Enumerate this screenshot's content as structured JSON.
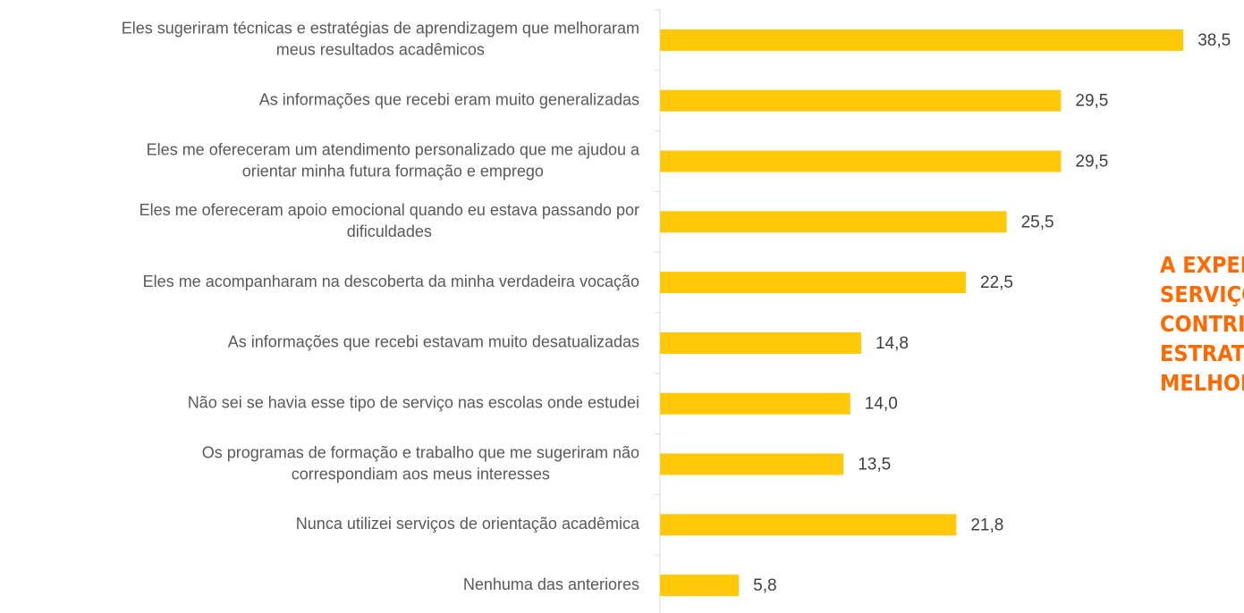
{
  "chart_data": {
    "type": "bar",
    "orientation": "horizontal",
    "categories": [
      [
        "Eles sugeriram técnicas e estratégias de aprendizagem que melhoraram",
        "meus resultados acadêmicos"
      ],
      [
        "As informações que recebi eram muito generalizadas"
      ],
      [
        "Eles me ofereceram um atendimento personalizado que me ajudou a",
        "orientar minha futura formação e emprego"
      ],
      [
        "Eles me ofereceram apoio emocional quando eu estava passando por",
        "dificuldades"
      ],
      [
        "Eles me acompanharam na descoberta da minha verdadeira vocação"
      ],
      [
        "As informações que recebi estavam muito desatualizadas"
      ],
      [
        "Não sei se havia esse tipo de serviço nas escolas onde estudei"
      ],
      [
        "Os programas de formação e trabalho que me sugeriram não",
        "correspondiam aos meus interesses"
      ],
      [
        "Nunca utilizei serviços de orientação acadêmica"
      ],
      [
        "Nenhuma das anteriores"
      ]
    ],
    "values": [
      38.5,
      29.5,
      29.5,
      25.5,
      22.5,
      14.8,
      14.0,
      13.5,
      21.8,
      5.8
    ],
    "value_labels": [
      "38,5",
      "29,5",
      "29,5",
      "25,5",
      "22,5",
      "14,8",
      "14,0",
      "13,5",
      "21,8",
      "5,8"
    ],
    "color": "#ffc90a",
    "annotation": [
      "A EXPERI",
      "SERVIÇOS",
      "CONTRIBU",
      "ESTRATÉG",
      "MELHORAI"
    ],
    "annotation_color": "#ff6a00"
  }
}
